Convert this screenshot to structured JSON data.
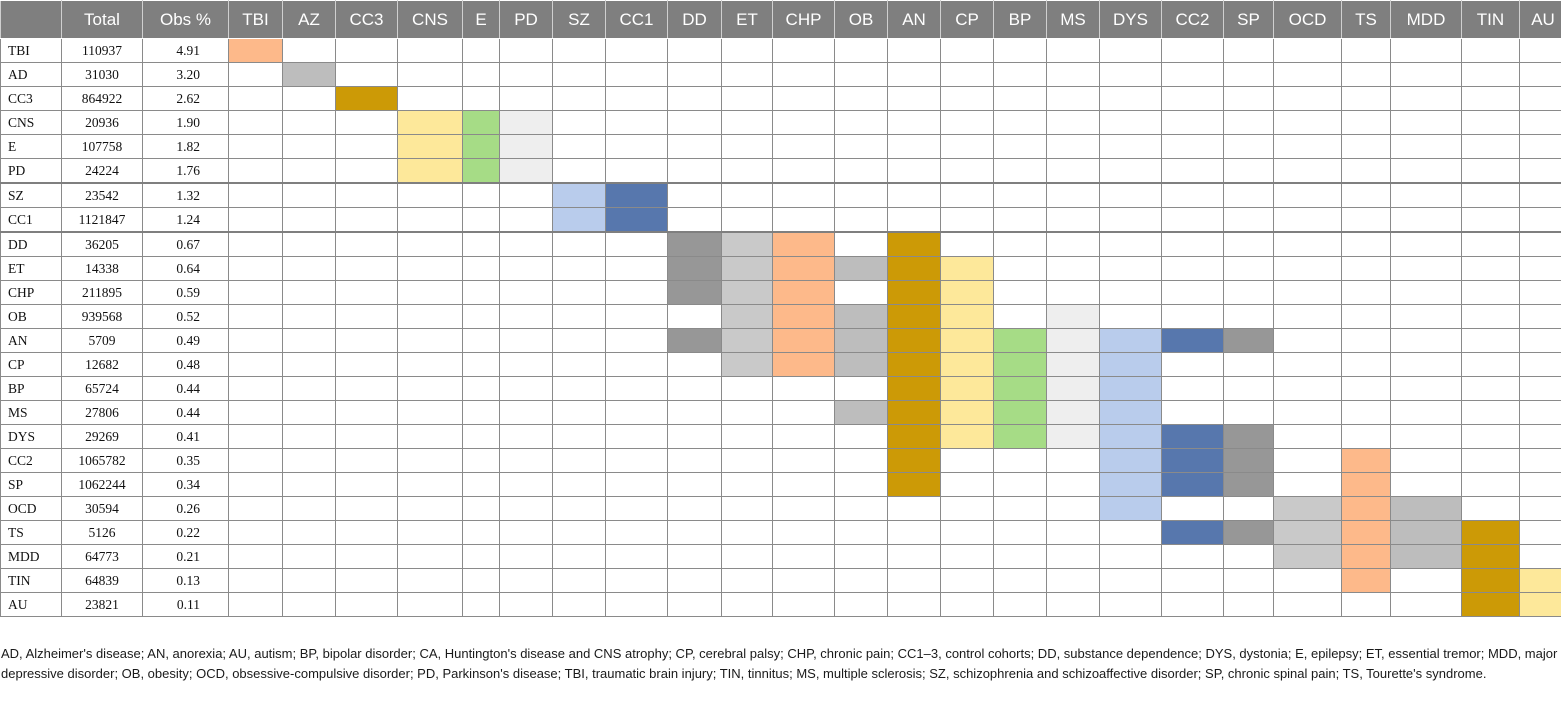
{
  "columns": [
    "",
    "Total",
    "Obs %",
    "TBI",
    "AZ",
    "CC3",
    "CNS",
    "E",
    "PD",
    "SZ",
    "CC1",
    "DD",
    "ET",
    "CHP",
    "OB",
    "AN",
    "CP",
    "BP",
    "MS",
    "DYS",
    "CC2",
    "SP",
    "OCD",
    "TS",
    "MDD",
    "TIN",
    "AU"
  ],
  "palette": {
    "peach": "#FDB98A",
    "silver": "#BDBDBD",
    "mustard": "#CC9A06",
    "yellow": "#FDE89A",
    "green": "#A6DC86",
    "pale": "#EEEEEE",
    "lightblue": "#B9CCEC",
    "blue": "#5777AD",
    "darkgray": "#979797",
    "lightgray": "#C9C9C9"
  },
  "rows": [
    {
      "name": "TBI",
      "total": "110937",
      "obs": "4.91",
      "fills": [
        [
          "TBI",
          "peach"
        ]
      ]
    },
    {
      "name": "AD",
      "total": "31030",
      "obs": "3.20",
      "fills": [
        [
          "AZ",
          "silver"
        ]
      ]
    },
    {
      "name": "CC3",
      "total": "864922",
      "obs": "2.62",
      "fills": [
        [
          "CC3",
          "mustard"
        ]
      ]
    },
    {
      "name": "CNS",
      "total": "20936",
      "obs": "1.90",
      "fills": [
        [
          "CNS",
          "yellow"
        ],
        [
          "E",
          "green"
        ],
        [
          "PD",
          "pale"
        ]
      ]
    },
    {
      "name": "E",
      "total": "107758",
      "obs": "1.82",
      "fills": [
        [
          "CNS",
          "yellow"
        ],
        [
          "E",
          "green"
        ],
        [
          "PD",
          "pale"
        ]
      ]
    },
    {
      "name": "PD",
      "total": "24224",
      "obs": "1.76",
      "fills": [
        [
          "CNS",
          "yellow"
        ],
        [
          "E",
          "green"
        ],
        [
          "PD",
          "pale"
        ]
      ]
    },
    {
      "name": "SZ",
      "total": "23542",
      "obs": "1.32",
      "fills": [
        [
          "SZ",
          "lightblue"
        ],
        [
          "CC1",
          "blue"
        ]
      ]
    },
    {
      "name": "CC1",
      "total": "1121847",
      "obs": "1.24",
      "fills": [
        [
          "SZ",
          "lightblue"
        ],
        [
          "CC1",
          "blue"
        ]
      ]
    },
    {
      "name": "DD",
      "total": "36205",
      "obs": "0.67",
      "fills": [
        [
          "DD",
          "darkgray"
        ],
        [
          "ET",
          "lightgray"
        ],
        [
          "CHP",
          "peach"
        ],
        [
          "AN",
          "mustard"
        ]
      ]
    },
    {
      "name": "ET",
      "total": "14338",
      "obs": "0.64",
      "fills": [
        [
          "DD",
          "darkgray"
        ],
        [
          "ET",
          "lightgray"
        ],
        [
          "CHP",
          "peach"
        ],
        [
          "OB",
          "silver"
        ],
        [
          "AN",
          "mustard"
        ],
        [
          "CP",
          "yellow"
        ]
      ]
    },
    {
      "name": "CHP",
      "total": "211895",
      "obs": "0.59",
      "fills": [
        [
          "DD",
          "darkgray"
        ],
        [
          "ET",
          "lightgray"
        ],
        [
          "CHP",
          "peach"
        ],
        [
          "AN",
          "mustard"
        ],
        [
          "CP",
          "yellow"
        ]
      ]
    },
    {
      "name": "OB",
      "total": "939568",
      "obs": "0.52",
      "fills": [
        [
          "ET",
          "lightgray"
        ],
        [
          "CHP",
          "peach"
        ],
        [
          "OB",
          "silver"
        ],
        [
          "AN",
          "mustard"
        ],
        [
          "CP",
          "yellow"
        ],
        [
          "MS",
          "pale"
        ]
      ]
    },
    {
      "name": "AN",
      "total": "5709",
      "obs": "0.49",
      "fills": [
        [
          "DD",
          "darkgray"
        ],
        [
          "ET",
          "lightgray"
        ],
        [
          "CHP",
          "peach"
        ],
        [
          "OB",
          "silver"
        ],
        [
          "AN",
          "mustard"
        ],
        [
          "CP",
          "yellow"
        ],
        [
          "BP",
          "green"
        ],
        [
          "MS",
          "pale"
        ],
        [
          "DYS",
          "lightblue"
        ],
        [
          "CC2",
          "blue"
        ],
        [
          "SP",
          "darkgray"
        ]
      ]
    },
    {
      "name": "CP",
      "total": "12682",
      "obs": "0.48",
      "fills": [
        [
          "ET",
          "lightgray"
        ],
        [
          "CHP",
          "peach"
        ],
        [
          "OB",
          "silver"
        ],
        [
          "AN",
          "mustard"
        ],
        [
          "CP",
          "yellow"
        ],
        [
          "BP",
          "green"
        ],
        [
          "MS",
          "pale"
        ],
        [
          "DYS",
          "lightblue"
        ]
      ]
    },
    {
      "name": "BP",
      "total": "65724",
      "obs": "0.44",
      "fills": [
        [
          "AN",
          "mustard"
        ],
        [
          "CP",
          "yellow"
        ],
        [
          "BP",
          "green"
        ],
        [
          "MS",
          "pale"
        ],
        [
          "DYS",
          "lightblue"
        ]
      ]
    },
    {
      "name": "MS",
      "total": "27806",
      "obs": "0.44",
      "fills": [
        [
          "OB",
          "silver"
        ],
        [
          "AN",
          "mustard"
        ],
        [
          "CP",
          "yellow"
        ],
        [
          "BP",
          "green"
        ],
        [
          "MS",
          "pale"
        ],
        [
          "DYS",
          "lightblue"
        ]
      ]
    },
    {
      "name": "DYS",
      "total": "29269",
      "obs": "0.41",
      "fills": [
        [
          "AN",
          "mustard"
        ],
        [
          "CP",
          "yellow"
        ],
        [
          "BP",
          "green"
        ],
        [
          "MS",
          "pale"
        ],
        [
          "DYS",
          "lightblue"
        ],
        [
          "CC2",
          "blue"
        ],
        [
          "SP",
          "darkgray"
        ]
      ]
    },
    {
      "name": "CC2",
      "total": "1065782",
      "obs": "0.35",
      "fills": [
        [
          "AN",
          "mustard"
        ],
        [
          "DYS",
          "lightblue"
        ],
        [
          "CC2",
          "blue"
        ],
        [
          "SP",
          "darkgray"
        ],
        [
          "TS",
          "peach"
        ]
      ]
    },
    {
      "name": "SP",
      "total": "1062244",
      "obs": "0.34",
      "fills": [
        [
          "AN",
          "mustard"
        ],
        [
          "DYS",
          "lightblue"
        ],
        [
          "CC2",
          "blue"
        ],
        [
          "SP",
          "darkgray"
        ],
        [
          "TS",
          "peach"
        ]
      ]
    },
    {
      "name": "OCD",
      "total": "30594",
      "obs": "0.26",
      "fills": [
        [
          "DYS",
          "lightblue"
        ],
        [
          "OCD",
          "lightgray"
        ],
        [
          "TS",
          "peach"
        ],
        [
          "MDD",
          "silver"
        ]
      ]
    },
    {
      "name": "TS",
      "total": "5126",
      "obs": "0.22",
      "fills": [
        [
          "CC2",
          "blue"
        ],
        [
          "SP",
          "darkgray"
        ],
        [
          "OCD",
          "lightgray"
        ],
        [
          "TS",
          "peach"
        ],
        [
          "MDD",
          "silver"
        ],
        [
          "TIN",
          "mustard"
        ]
      ]
    },
    {
      "name": "MDD",
      "total": "64773",
      "obs": "0.21",
      "fills": [
        [
          "OCD",
          "lightgray"
        ],
        [
          "TS",
          "peach"
        ],
        [
          "MDD",
          "silver"
        ],
        [
          "TIN",
          "mustard"
        ]
      ]
    },
    {
      "name": "TIN",
      "total": "64839",
      "obs": "0.13",
      "fills": [
        [
          "TS",
          "peach"
        ],
        [
          "TIN",
          "mustard"
        ],
        [
          "AU",
          "yellow"
        ]
      ]
    },
    {
      "name": "AU",
      "total": "23821",
      "obs": "0.11",
      "fills": [
        [
          "TIN",
          "mustard"
        ],
        [
          "AU",
          "yellow"
        ]
      ]
    }
  ],
  "footnote": "AD, Alzheimer's disease; AN, anorexia; AU, autism; BP, bipolar disorder; CA, Huntington's disease and CNS atrophy; CP, cerebral palsy; CHP, chronic pain; CC1–3, control cohorts; DD, substance dependence; DYS, dystonia; E, epilepsy; ET, essential tremor; MDD, major depressive disorder; OB, obesity; OCD, obsessive-compulsive disorder; PD, Parkinson's disease; TBI, traumatic brain injury; TIN, tinnitus; MS, multiple sclerosis; SZ, schizophrenia and schizoaffective disorder; SP, chronic spinal pain; TS, Tourette's syndrome."
}
